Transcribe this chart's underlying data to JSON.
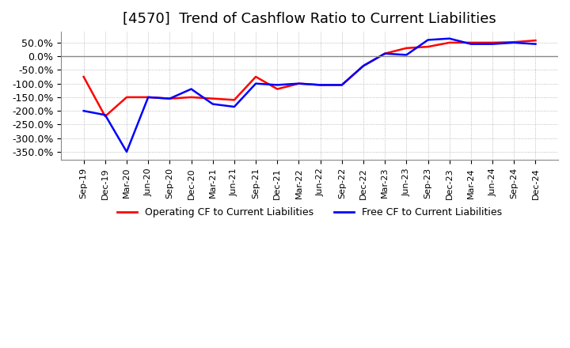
{
  "title": "[4570]  Trend of Cashflow Ratio to Current Liabilities",
  "title_fontsize": 13,
  "legend_labels": [
    "Operating CF to Current Liabilities",
    "Free CF to Current Liabilities"
  ],
  "legend_colors": [
    "red",
    "blue"
  ],
  "x_labels": [
    "Sep-19",
    "Dec-19",
    "Mar-20",
    "Jun-20",
    "Sep-20",
    "Dec-20",
    "Mar-21",
    "Jun-21",
    "Sep-21",
    "Dec-21",
    "Mar-22",
    "Jun-22",
    "Sep-22",
    "Dec-22",
    "Mar-23",
    "Jun-23",
    "Sep-23",
    "Dec-23",
    "Mar-24",
    "Jun-24",
    "Sep-24",
    "Dec-24"
  ],
  "operating_cf": [
    -75,
    -220,
    -150,
    -150,
    -155,
    -150,
    -155,
    -160,
    -75,
    -120,
    -100,
    -105,
    -105,
    -35,
    10,
    30,
    35,
    50,
    50,
    50,
    52,
    58
  ],
  "free_cf": [
    -200,
    -215,
    -350,
    -150,
    -155,
    -120,
    -175,
    -185,
    -100,
    -105,
    -100,
    -105,
    -105,
    -35,
    10,
    5,
    60,
    65,
    45,
    45,
    50,
    45
  ],
  "ylim": [
    -380,
    90
  ],
  "yticks": [
    50,
    0,
    -50,
    -100,
    -150,
    -200,
    -250,
    -300,
    -350
  ],
  "background_color": "#ffffff",
  "grid_color": "#aaaaaa",
  "plot_bg_color": "#ffffff",
  "zero_line_color": "#888888"
}
